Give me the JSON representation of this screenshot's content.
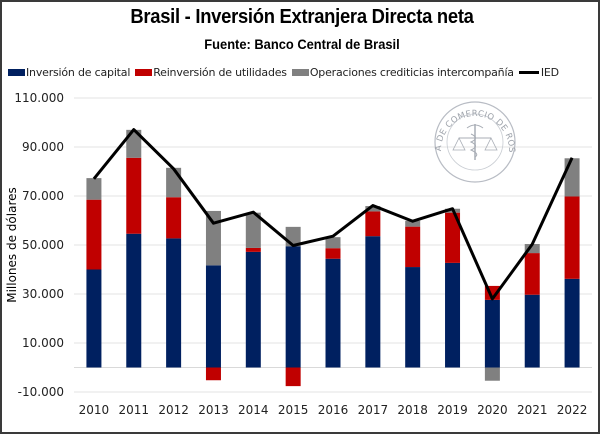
{
  "chart_data": {
    "type": "bar",
    "stacked": true,
    "title": "Brasil - Inversión Extranjera Directa neta",
    "subtitle": "Fuente: Banco Central de Brasil",
    "xlabel": "",
    "ylabel": "Millones de dólares",
    "ylim": [
      -10000,
      110000
    ],
    "yticks": [
      -10000,
      10000,
      30000,
      50000,
      70000,
      90000,
      110000
    ],
    "ytick_labels": [
      "-10.000",
      "10.000",
      "30.000",
      "50.000",
      "70.000",
      "90.000",
      "110.000"
    ],
    "grid": true,
    "legend_position": "top",
    "categories": [
      "2010",
      "2011",
      "2012",
      "2013",
      "2014",
      "2015",
      "2016",
      "2017",
      "2018",
      "2019",
      "2020",
      "2021",
      "2022"
    ],
    "series": [
      {
        "name": "Inversión de capital",
        "type": "bar",
        "color": "#002060",
        "values": [
          40000,
          54600,
          52700,
          41700,
          47200,
          49500,
          44400,
          53600,
          41000,
          42700,
          27600,
          29700,
          36200
        ]
      },
      {
        "name": "Reinversión de utilidades",
        "type": "bar",
        "color": "#C00000",
        "values": [
          28500,
          31000,
          16800,
          -5200,
          1600,
          -7600,
          4300,
          10100,
          16500,
          20500,
          5700,
          17000,
          33600
        ]
      },
      {
        "name": "Operaciones crediticias intercompañía",
        "type": "bar",
        "color": "#808080",
        "values": [
          8800,
          11400,
          12000,
          22200,
          14400,
          7900,
          4500,
          2200,
          2400,
          1600,
          -5400,
          3700,
          15600
        ]
      },
      {
        "name": "IED",
        "type": "line",
        "color": "#000000",
        "values": [
          77000,
          97100,
          81100,
          58900,
          63400,
          49800,
          53600,
          66100,
          59700,
          64800,
          28000,
          50300,
          85600
        ]
      }
    ]
  },
  "watermark": {
    "text": "BOLSA DE COMERCIO DE ROSARIO"
  }
}
